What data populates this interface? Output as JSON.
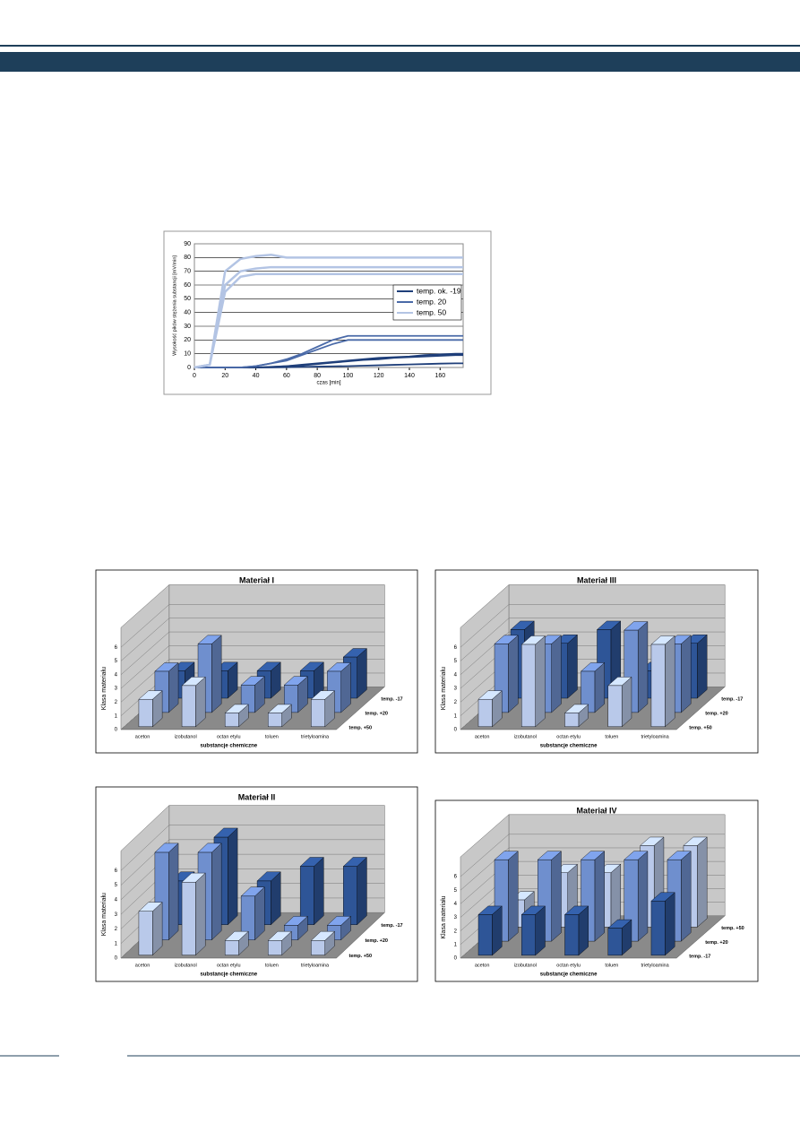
{
  "chart_data": [
    {
      "type": "line",
      "y_label": "Wysokość pików stężenia substancji [mV/min]",
      "x_label": "czas [min]",
      "x": [
        0,
        10,
        20,
        30,
        40,
        50,
        60,
        70,
        80,
        90,
        100,
        110,
        120,
        130,
        140,
        150,
        160,
        170,
        175
      ],
      "xlim": [
        0,
        175
      ],
      "xticks": [
        0,
        20,
        40,
        60,
        80,
        100,
        120,
        140,
        160
      ],
      "ylim": [
        0,
        90
      ],
      "yticks": [
        0,
        10,
        20,
        30,
        40,
        50,
        60,
        70,
        80,
        90
      ],
      "grid": true,
      "series": [
        {
          "name": "temp. ok. -19",
          "color": "#1f3f7a",
          "values": [
            [
              0,
              0,
              0,
              0,
              0,
              0.5,
              1,
              2,
              3,
              4,
              5,
              6,
              7,
              7.5,
              8,
              9,
              9.5,
              10,
              10
            ],
            [
              0,
              0,
              0,
              0,
              0,
              0.3,
              1,
              1.5,
              2.5,
              3.5,
              4.5,
              5.5,
              6,
              7,
              7.5,
              8,
              8.5,
              9,
              9
            ],
            [
              0,
              0,
              0,
              0,
              0,
              0,
              0.2,
              0.4,
              0.6,
              0.8,
              1,
              1.3,
              1.6,
              1.9,
              2.2,
              2.5,
              2.8,
              3,
              3
            ]
          ]
        },
        {
          "name": "temp. 20",
          "color": "#4a6aa8",
          "values": [
            [
              0,
              0,
              0,
              0,
              1,
              3,
              6,
              10,
              15,
              20,
              23,
              23,
              23,
              23,
              23,
              23,
              23,
              23,
              23
            ],
            [
              0,
              0,
              0,
              0,
              1,
              3,
              5,
              9,
              13,
              17,
              20,
              20,
              20,
              20,
              20,
              20,
              20,
              20,
              20
            ]
          ]
        },
        {
          "name": "temp. 50",
          "color": "#b3c4e4",
          "values": [
            [
              0,
              2,
              70,
              79,
              81,
              82,
              80,
              80,
              80,
              80,
              80,
              80,
              80,
              80,
              80,
              80,
              80,
              80,
              80
            ],
            [
              0,
              2,
              60,
              70,
              72,
              73,
              73,
              73,
              73,
              73,
              73,
              73,
              73,
              73,
              73,
              73,
              73,
              73,
              73
            ],
            [
              0,
              2,
              55,
              66,
              68,
              68,
              68,
              68,
              68,
              68,
              68,
              68,
              68,
              68,
              68,
              68,
              68,
              68,
              68
            ]
          ]
        }
      ]
    },
    {
      "type": "bar3d",
      "title": "Materiał I",
      "y_label": "Klasa materiału",
      "x_label": "substancje chemiczne",
      "categories": [
        "aceton",
        "izobutanol",
        "octan etylu",
        "toluen",
        "trietyloamina"
      ],
      "ylim": [
        0,
        6
      ],
      "yticks": [
        0,
        1,
        2,
        3,
        4,
        5,
        6
      ],
      "series": [
        {
          "name": "temp. -17",
          "color": "#2e5597",
          "values": [
            2,
            2,
            2,
            2,
            3
          ]
        },
        {
          "name": "temp. +20",
          "color": "#6f8fce",
          "values": [
            3,
            5,
            2,
            2,
            3
          ]
        },
        {
          "name": "temp. +50",
          "color": "#b9c9ea",
          "values": [
            2,
            3,
            1,
            1,
            2
          ]
        }
      ]
    },
    {
      "type": "bar3d",
      "title": "Materiał III",
      "y_label": "Klasa materiału",
      "x_label": "substancje chemiczne",
      "categories": [
        "aceton",
        "izobutanol",
        "octan etylu",
        "toluen",
        "trietyloamina"
      ],
      "ylim": [
        0,
        6
      ],
      "yticks": [
        0,
        1,
        2,
        3,
        4,
        5,
        6
      ],
      "series": [
        {
          "name": "temp. -17",
          "color": "#2e5597",
          "values": [
            5,
            4,
            5,
            2,
            4
          ]
        },
        {
          "name": "temp. +20",
          "color": "#6f8fce",
          "values": [
            5,
            5,
            3,
            6,
            5
          ]
        },
        {
          "name": "temp. +50",
          "color": "#b9c9ea",
          "values": [
            2,
            6,
            1,
            3,
            6
          ]
        }
      ]
    },
    {
      "type": "bar3d",
      "title": "Materiał II",
      "y_label": "Klasa materiału",
      "x_label": "substancje chemiczne",
      "categories": [
        "aceton",
        "izobutanol",
        "octan etylu",
        "toluen",
        "trietyloamina"
      ],
      "ylim": [
        0,
        6
      ],
      "yticks": [
        0,
        1,
        2,
        3,
        4,
        5,
        6
      ],
      "series": [
        {
          "name": "temp. -17",
          "color": "#2e5597",
          "values": [
            3,
            6,
            3,
            4,
            4
          ]
        },
        {
          "name": "temp. +20",
          "color": "#6f8fce",
          "values": [
            6,
            6,
            3,
            1,
            1
          ]
        },
        {
          "name": "temp. +50",
          "color": "#b9c9ea",
          "values": [
            3,
            5,
            1,
            1,
            1
          ]
        }
      ]
    },
    {
      "type": "bar3d",
      "title": "Materiał IV",
      "y_label": "Klasa materiału",
      "x_label": "substancje chemiczne",
      "categories": [
        "aceton",
        "izobutanol",
        "octan etylu",
        "toluen",
        "trietyloamina"
      ],
      "ylim": [
        0,
        6
      ],
      "yticks": [
        0,
        1,
        2,
        3,
        4,
        5,
        6
      ],
      "series": [
        {
          "name": "temp. +50",
          "color": "#b9c9ea",
          "values": [
            2,
            4,
            4,
            6,
            6
          ]
        },
        {
          "name": "temp. +20",
          "color": "#6f8fce",
          "values": [
            6,
            6,
            6,
            6,
            6
          ]
        },
        {
          "name": "temp. -17",
          "color": "#2e5597",
          "values": [
            3,
            3,
            3,
            2,
            4
          ]
        }
      ]
    }
  ]
}
